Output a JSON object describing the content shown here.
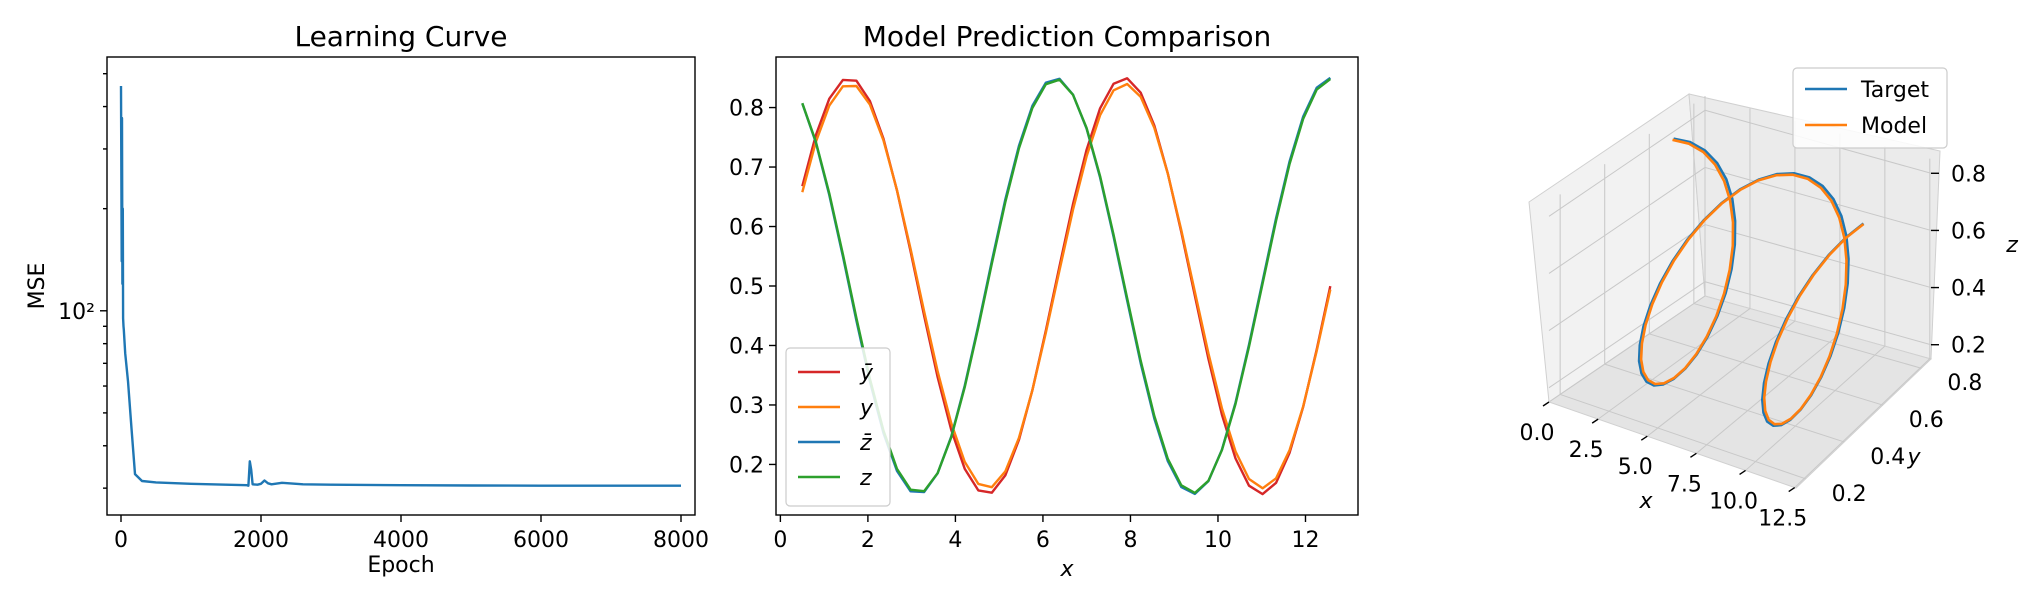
{
  "colors": {
    "blue": "#1f77b4",
    "orange": "#ff7f0e",
    "green": "#2ca02c",
    "red": "#d62728"
  },
  "chart_data": [
    {
      "type": "line",
      "title": "Learning Curve",
      "xlabel": "Epoch",
      "ylabel": "MSE",
      "yscale": "log",
      "xlim": [
        -200,
        8200
      ],
      "ylim": [
        25,
        560
      ],
      "xticks": [
        0,
        2000,
        4000,
        6000,
        8000
      ],
      "xtick_labels": [
        "0",
        "2000",
        "4000",
        "6000",
        "8000"
      ],
      "yticks": [
        100
      ],
      "ytick_labels": [
        "10²"
      ],
      "series": [
        {
          "color": "#1f77b4",
          "x": [
            0,
            10,
            15,
            20,
            25,
            30,
            35,
            40,
            60,
            100,
            150,
            200,
            300,
            500,
            1000,
            1500,
            1800,
            1820,
            1840,
            1860,
            1880,
            1950,
            2000,
            2050,
            2100,
            2150,
            2200,
            2300,
            2400,
            2600,
            3000,
            4000,
            5000,
            6000,
            7000,
            8000
          ],
          "y": [
            460,
            140,
            370,
            120,
            200,
            95,
            90,
            88,
            75,
            62,
            45,
            33,
            31.5,
            31.2,
            30.9,
            30.7,
            30.6,
            30.5,
            36,
            34,
            30.8,
            30.7,
            30.9,
            31.6,
            31,
            30.8,
            30.9,
            31.1,
            31,
            30.8,
            30.7,
            30.6,
            30.55,
            30.5,
            30.5,
            30.5
          ]
        }
      ]
    },
    {
      "type": "line",
      "title": "Model Prediction Comparison",
      "xlabel": "x",
      "ylabel": "",
      "xlim": [
        -0.1,
        13.2
      ],
      "ylim": [
        0.115,
        0.885
      ],
      "xticks": [
        0,
        2,
        4,
        6,
        8,
        10,
        12
      ],
      "xtick_labels": [
        "0",
        "2",
        "4",
        "6",
        "8",
        "10",
        "12"
      ],
      "yticks": [
        0.2,
        0.3,
        0.4,
        0.5,
        0.6,
        0.7,
        0.8
      ],
      "ytick_labels": [
        "0.2",
        "0.3",
        "0.4",
        "0.5",
        "0.6",
        "0.7",
        "0.8"
      ],
      "x_range": [
        0.5,
        12.566
      ],
      "num_points": 40,
      "legend_position": "lower left",
      "series": [
        {
          "name": "ȳ",
          "color": "#d62728",
          "formula": "0.5 + 0.35*sin(x)"
        },
        {
          "name": "y",
          "color": "#ff7f0e",
          "formula": "0.5 + 0.34*sin(x) (model)"
        },
        {
          "name": "z̄",
          "color": "#1f77b4",
          "formula": "0.5 + 0.35*cos(x)"
        },
        {
          "name": "z",
          "color": "#2ca02c",
          "formula": "0.5 + 0.35*cos(x) (model)"
        }
      ]
    },
    {
      "type": "line3d",
      "title": "",
      "xlabel": "x",
      "ylabel": "y",
      "zlabel": "z",
      "xticks": [
        "0.0",
        "2.5",
        "5.0",
        "7.5",
        "10.0",
        "12.5"
      ],
      "yticks": [
        "0.2",
        "0.4",
        "0.6",
        "0.8"
      ],
      "zticks": [
        "0.2",
        "0.4",
        "0.6",
        "0.8"
      ],
      "legend_position": "upper right",
      "series": [
        {
          "name": "Target",
          "color": "#1f77b4"
        },
        {
          "name": "Model",
          "color": "#ff7f0e"
        }
      ]
    }
  ]
}
